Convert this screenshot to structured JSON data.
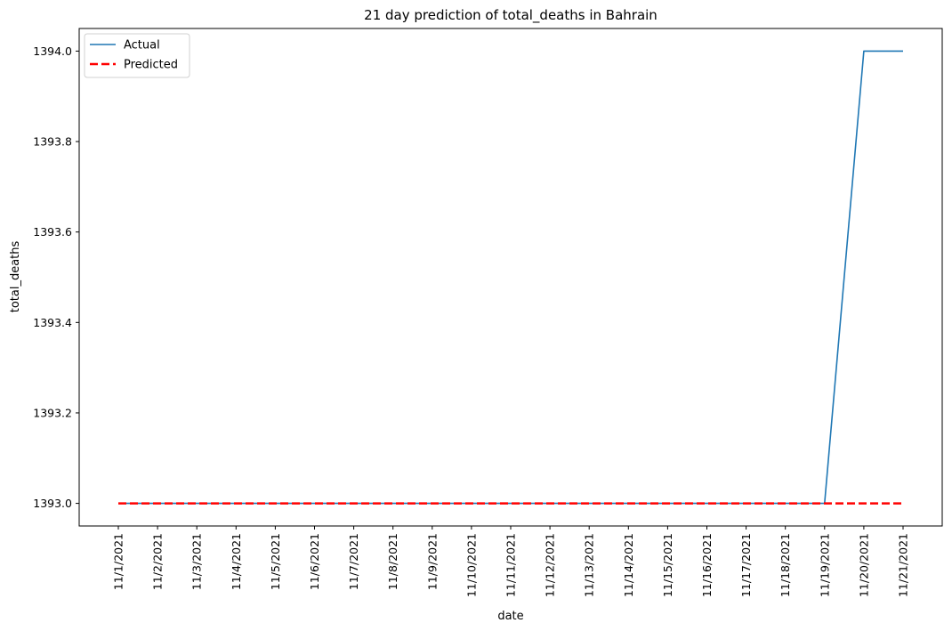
{
  "chart_data": {
    "type": "line",
    "title": "21 day prediction of total_deaths in Bahrain",
    "xlabel": "date",
    "ylabel": "total_deaths",
    "x": [
      "11/1/2021",
      "11/2/2021",
      "11/3/2021",
      "11/4/2021",
      "11/5/2021",
      "11/6/2021",
      "11/7/2021",
      "11/8/2021",
      "11/9/2021",
      "11/10/2021",
      "11/11/2021",
      "11/12/2021",
      "11/13/2021",
      "11/14/2021",
      "11/15/2021",
      "11/16/2021",
      "11/17/2021",
      "11/18/2021",
      "11/19/2021",
      "11/20/2021",
      "11/21/2021"
    ],
    "ylim": [
      1392.95,
      1394.05
    ],
    "yticks": [
      1393.0,
      1393.2,
      1393.4,
      1393.6,
      1393.8,
      1394.0
    ],
    "ytick_labels": [
      "1393.0",
      "1393.2",
      "1393.4",
      "1393.6",
      "1393.8",
      "1394.0"
    ],
    "grid": false,
    "legend_position": "top-left",
    "series": [
      {
        "name": "Actual",
        "color": "#1f77b4",
        "style": "solid",
        "values": [
          1393,
          1393,
          1393,
          1393,
          1393,
          1393,
          1393,
          1393,
          1393,
          1393,
          1393,
          1393,
          1393,
          1393,
          1393,
          1393,
          1393,
          1393,
          1393,
          1394,
          1394
        ]
      },
      {
        "name": "Predicted",
        "color": "#ff0000",
        "style": "dashed",
        "values": [
          1393,
          1393,
          1393,
          1393,
          1393,
          1393,
          1393,
          1393,
          1393,
          1393,
          1393,
          1393,
          1393,
          1393,
          1393,
          1393,
          1393,
          1393,
          1393,
          1393,
          1393
        ]
      }
    ]
  }
}
